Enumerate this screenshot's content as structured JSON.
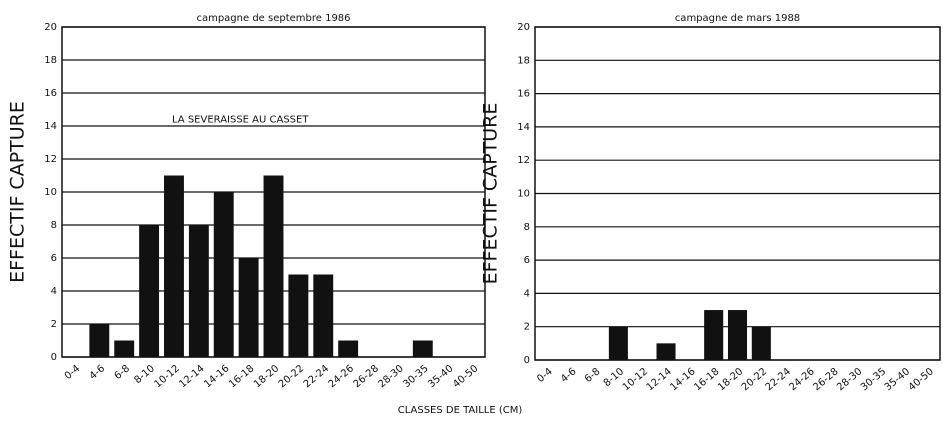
{
  "chart_data": [
    {
      "type": "bar",
      "title": "campagne de septembre 1986",
      "ylabel": "EFFECTIF CAPTURE",
      "xlabel": "CLASSES DE TAILLE (CM)",
      "annotation": "LA SEVERAISSE AU CASSET",
      "categories": [
        "0-4",
        "4-6",
        "6-8",
        "8-10",
        "10-12",
        "12-14",
        "14-16",
        "16-18",
        "18-20",
        "20-22",
        "22-24",
        "24-26",
        "26-28",
        "28-30",
        "30-35",
        "35-40",
        "40-50"
      ],
      "values": [
        0,
        2,
        1,
        8,
        11,
        8,
        10,
        6,
        11,
        5,
        5,
        1,
        0,
        0,
        1,
        0,
        0
      ],
      "color": "#111111",
      "ylim": [
        0,
        20
      ],
      "yticks": [
        0,
        2,
        4,
        6,
        8,
        10,
        12,
        14,
        16,
        18,
        20
      ],
      "grid": true
    },
    {
      "type": "bar",
      "title": "campagne de mars 1988",
      "ylabel": "EFFECTIF CAPTURE",
      "categories": [
        "0-4",
        "4-6",
        "6-8",
        "8-10",
        "10-12",
        "12-14",
        "14-16",
        "16-18",
        "18-20",
        "20-22",
        "22-24",
        "24-26",
        "26-28",
        "28-30",
        "30-35",
        "35-40",
        "40-50"
      ],
      "values": [
        0,
        0,
        0,
        2,
        0,
        1,
        0,
        3,
        3,
        2,
        0,
        0,
        0,
        0,
        0,
        0,
        0
      ],
      "color": "#111111",
      "ylim": [
        0,
        20
      ],
      "yticks": [
        0,
        2,
        4,
        6,
        8,
        10,
        12,
        14,
        16,
        18,
        20
      ],
      "grid": true
    }
  ]
}
